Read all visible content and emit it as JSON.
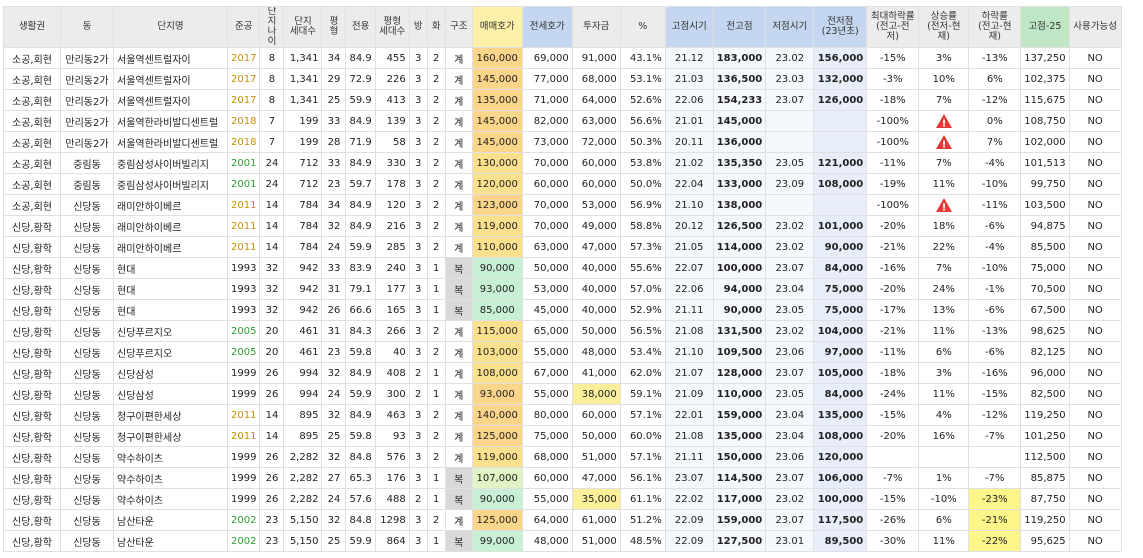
{
  "colors": {
    "header_bg": "#ececec",
    "blue_header": "#c5d7f0",
    "yellow_header": "#fdf0a8",
    "green_header": "#bfe7c6",
    "year_new": "#c69000",
    "year_recent": "#2f9e35",
    "warning": "#e53935"
  },
  "headers": [
    "생활권",
    "동",
    "단지명",
    "준공",
    "단지\n나이",
    "단지\n세대수",
    "평형",
    "전용",
    "평형\n세대수",
    "방",
    "화",
    "구조",
    "매매호가",
    "전세호가",
    "투자금",
    "%",
    "고점시기",
    "전고점",
    "저점시기",
    "전저점\n(23년초)",
    "최대하락률\n(전고-전저)",
    "상승률\n(전저-현재)",
    "하락률\n(전고-현재)",
    "고점-25",
    "사용가능성"
  ],
  "rows": [
    {
      "c": [
        "소공,회현",
        "만리동2가",
        "서울역센트럴자이",
        "2017",
        "8",
        "1,341",
        "34",
        "84.9",
        "455",
        "3",
        "2",
        "계",
        "160,000",
        "69,000",
        "91,000",
        "43.1%",
        "21.12",
        "183,000",
        "23.02",
        "156,000",
        "-15%",
        "3%",
        "-13%",
        "137,250",
        "NO"
      ],
      "yc": "y",
      "sc": "o",
      "pc": "y"
    },
    {
      "c": [
        "소공,회현",
        "만리동2가",
        "서울역센트럴자이",
        "2017",
        "8",
        "1,341",
        "29",
        "72.9",
        "226",
        "3",
        "2",
        "계",
        "145,000",
        "77,000",
        "68,000",
        "53.1%",
        "21.03",
        "136,500",
        "23.03",
        "132,000",
        "-3%",
        "10%",
        "6%",
        "102,375",
        "NO"
      ],
      "yc": "y",
      "sc": "o",
      "pc": "y"
    },
    {
      "c": [
        "소공,회현",
        "만리동2가",
        "서울역센트럴자이",
        "2017",
        "8",
        "1,341",
        "25",
        "59.9",
        "413",
        "3",
        "2",
        "계",
        "135,000",
        "71,000",
        "64,000",
        "52.6%",
        "22.06",
        "154,233",
        "23.07",
        "126,000",
        "-18%",
        "7%",
        "-12%",
        "115,675",
        "NO"
      ],
      "yc": "y",
      "sc": "o",
      "pc": "y"
    },
    {
      "c": [
        "소공,회현",
        "만리동2가",
        "서울역한라비발디센트럴",
        "2018",
        "7",
        "199",
        "33",
        "84.9",
        "139",
        "3",
        "2",
        "계",
        "145,000",
        "82,000",
        "63,000",
        "56.6%",
        "21.01",
        "145,000",
        "",
        "",
        "-100%",
        "!",
        "0%",
        "108,750",
        "NO"
      ],
      "yc": "y",
      "sc": "o",
      "pc": "y"
    },
    {
      "c": [
        "소공,회현",
        "만리동2가",
        "서울역한라비발디센트럴",
        "2018",
        "7",
        "199",
        "28",
        "71.9",
        "58",
        "3",
        "2",
        "계",
        "145,000",
        "73,000",
        "72,000",
        "50.3%",
        "20.11",
        "136,000",
        "",
        "",
        "-100%",
        "!",
        "7%",
        "102,000",
        "NO"
      ],
      "yc": "y",
      "sc": "o",
      "pc": "y"
    },
    {
      "c": [
        "소공,회현",
        "중림동",
        "중림삼성사이버빌리지",
        "2001",
        "24",
        "712",
        "33",
        "84.9",
        "330",
        "3",
        "2",
        "계",
        "130,000",
        "70,000",
        "60,000",
        "53.8%",
        "21.02",
        "135,350",
        "23.05",
        "121,000",
        "-11%",
        "7%",
        "-4%",
        "101,513",
        "NO"
      ],
      "yc": "g",
      "sc": "o",
      "pc": "lg"
    },
    {
      "c": [
        "소공,회현",
        "중림동",
        "중림삼성사이버빌리지",
        "2001",
        "24",
        "712",
        "23",
        "59.7",
        "178",
        "3",
        "2",
        "계",
        "120,000",
        "60,000",
        "60,000",
        "50.0%",
        "22.04",
        "133,000",
        "23.09",
        "108,000",
        "-19%",
        "11%",
        "-10%",
        "99,750",
        "NO"
      ],
      "yc": "g",
      "sc": "o",
      "pc": "lg"
    },
    {
      "c": [
        "소공,회현",
        "신당동",
        "래미안하이베르",
        "2011",
        "14",
        "784",
        "34",
        "84.9",
        "120",
        "3",
        "2",
        "계",
        "123,000",
        "70,000",
        "53,000",
        "56.9%",
        "21.10",
        "138,000",
        "",
        "",
        "-100%",
        "!",
        "-11%",
        "103,500",
        "NO"
      ],
      "yc": "y",
      "sc": "o",
      "pc": "y"
    },
    {
      "c": [
        "신당,황학",
        "신당동",
        "래미안하이베르",
        "2011",
        "14",
        "784",
        "32",
        "84.9",
        "216",
        "3",
        "2",
        "계",
        "119,000",
        "70,000",
        "49,000",
        "58.8%",
        "20.12",
        "126,500",
        "23.02",
        "101,000",
        "-20%",
        "18%",
        "-6%",
        "94,875",
        "NO"
      ],
      "yc": "y",
      "sc": "o",
      "pc": "lg"
    },
    {
      "c": [
        "신당,황학",
        "신당동",
        "래미안하이베르",
        "2011",
        "14",
        "784",
        "24",
        "59.9",
        "285",
        "3",
        "2",
        "계",
        "110,000",
        "63,000",
        "47,000",
        "57.3%",
        "21.05",
        "114,000",
        "23.02",
        "90,000",
        "-21%",
        "22%",
        "-4%",
        "85,500",
        "NO"
      ],
      "yc": "y",
      "sc": "o",
      "pc": "lg"
    },
    {
      "c": [
        "신당,황학",
        "신당동",
        "현대",
        "1993",
        "32",
        "942",
        "33",
        "83.9",
        "240",
        "3",
        "1",
        "복",
        "90,000",
        "50,000",
        "40,000",
        "55.6%",
        "22.07",
        "100,000",
        "23.07",
        "84,000",
        "-16%",
        "7%",
        "-10%",
        "75,000",
        "NO"
      ],
      "yc": "b",
      "sc": "g",
      "pc": "g"
    },
    {
      "c": [
        "신당,황학",
        "신당동",
        "현대",
        "1993",
        "32",
        "942",
        "31",
        "79.1",
        "177",
        "3",
        "1",
        "복",
        "93,000",
        "53,000",
        "40,000",
        "57.0%",
        "22.06",
        "94,000",
        "23.04",
        "75,000",
        "-20%",
        "24%",
        "-1%",
        "70,500",
        "NO"
      ],
      "yc": "b",
      "sc": "g",
      "pc": "g"
    },
    {
      "c": [
        "신당,황학",
        "신당동",
        "현대",
        "1993",
        "32",
        "942",
        "26",
        "66.6",
        "165",
        "3",
        "1",
        "복",
        "85,000",
        "45,000",
        "40,000",
        "52.9%",
        "21.11",
        "90,000",
        "23.05",
        "75,000",
        "-17%",
        "13%",
        "-6%",
        "67,500",
        "NO"
      ],
      "yc": "b",
      "sc": "g",
      "pc": "g"
    },
    {
      "c": [
        "신당,황학",
        "신당동",
        "신당푸르지오",
        "2005",
        "20",
        "461",
        "31",
        "84.3",
        "266",
        "3",
        "2",
        "계",
        "115,000",
        "65,000",
        "50,000",
        "56.5%",
        "21.08",
        "131,500",
        "23.02",
        "104,000",
        "-21%",
        "11%",
        "-13%",
        "98,625",
        "NO"
      ],
      "yc": "g",
      "sc": "o",
      "pc": "lg"
    },
    {
      "c": [
        "신당,황학",
        "신당동",
        "신당푸르지오",
        "2005",
        "20",
        "461",
        "23",
        "59.8",
        "40",
        "3",
        "2",
        "계",
        "103,000",
        "55,000",
        "48,000",
        "53.4%",
        "21.10",
        "109,500",
        "23.06",
        "97,000",
        "-11%",
        "6%",
        "-6%",
        "82,125",
        "NO"
      ],
      "yc": "g",
      "sc": "o",
      "pc": "lg"
    },
    {
      "c": [
        "신당,황학",
        "신당동",
        "신당삼성",
        "1999",
        "26",
        "994",
        "32",
        "84.9",
        "408",
        "2",
        "1",
        "계",
        "108,000",
        "67,000",
        "41,000",
        "62.0%",
        "21.07",
        "128,000",
        "23.07",
        "105,000",
        "-18%",
        "3%",
        "-16%",
        "96,000",
        "NO"
      ],
      "yc": "b",
      "sc": "o",
      "pc": "lg"
    },
    {
      "c": [
        "신당,황학",
        "신당동",
        "신당삼성",
        "1999",
        "26",
        "994",
        "24",
        "59.9",
        "300",
        "2",
        "1",
        "계",
        "93,000",
        "55,000",
        "38,000",
        "59.1%",
        "21.09",
        "110,000",
        "23.05",
        "84,000",
        "-24%",
        "11%",
        "-15%",
        "82,500",
        "NO"
      ],
      "yc": "b",
      "sc": "o",
      "pc": "g",
      "ic": "y"
    },
    {
      "c": [
        "신당,황학",
        "신당동",
        "청구이편한세상",
        "2011",
        "14",
        "895",
        "32",
        "84.9",
        "463",
        "3",
        "2",
        "계",
        "140,000",
        "80,000",
        "60,000",
        "57.1%",
        "22.01",
        "159,000",
        "23.04",
        "135,000",
        "-15%",
        "4%",
        "-12%",
        "119,250",
        "NO"
      ],
      "yc": "y",
      "sc": "o",
      "pc": "y"
    },
    {
      "c": [
        "신당,황학",
        "신당동",
        "청구이편한세상",
        "2011",
        "14",
        "895",
        "25",
        "59.8",
        "93",
        "3",
        "2",
        "계",
        "125,000",
        "75,000",
        "50,000",
        "60.0%",
        "21.08",
        "135,000",
        "23.04",
        "108,000",
        "-20%",
        "16%",
        "-7%",
        "101,250",
        "NO"
      ],
      "yc": "y",
      "sc": "o",
      "pc": "y"
    },
    {
      "c": [
        "신당,황학",
        "신당동",
        "약수하이츠",
        "1999",
        "26",
        "2,282",
        "32",
        "84.8",
        "576",
        "3",
        "2",
        "계",
        "119,000",
        "68,000",
        "51,000",
        "57.1%",
        "21.11",
        "150,000",
        "23.06",
        "120,000",
        "",
        "",
        "",
        "112,500",
        "NO"
      ],
      "yc": "b",
      "sc": "o",
      "pc": "lg"
    },
    {
      "c": [
        "신당,황학",
        "신당동",
        "약수하이츠",
        "1999",
        "26",
        "2,282",
        "27",
        "65.3",
        "176",
        "3",
        "1",
        "복",
        "107,000",
        "60,000",
        "47,000",
        "56.1%",
        "23.07",
        "114,500",
        "23.07",
        "106,000",
        "-7%",
        "1%",
        "-7%",
        "85,875",
        "NO"
      ],
      "yc": "b",
      "sc": "g",
      "pc": "lg"
    },
    {
      "c": [
        "신당,황학",
        "신당동",
        "약수하이츠",
        "1999",
        "26",
        "2,282",
        "24",
        "57.6",
        "488",
        "2",
        "1",
        "복",
        "90,000",
        "55,000",
        "35,000",
        "61.1%",
        "22.02",
        "117,000",
        "23.02",
        "100,000",
        "-15%",
        "-10%",
        "-23%",
        "87,750",
        "NO"
      ],
      "yc": "b",
      "sc": "g",
      "pc": "g",
      "ic": "y",
      "dc": "y"
    },
    {
      "c": [
        "신당,황학",
        "신당동",
        "남산타운",
        "2002",
        "23",
        "5,150",
        "32",
        "84.8",
        "1298",
        "3",
        "2",
        "계",
        "125,000",
        "64,000",
        "61,000",
        "51.2%",
        "22.09",
        "159,000",
        "23.07",
        "117,500",
        "-26%",
        "6%",
        "-21%",
        "119,250",
        "NO"
      ],
      "yc": "g",
      "sc": "o",
      "pc": "y",
      "dc": "y"
    },
    {
      "c": [
        "신당,황학",
        "신당동",
        "남산타운",
        "2002",
        "23",
        "5,150",
        "25",
        "59.9",
        "864",
        "3",
        "1",
        "복",
        "99,000",
        "48,000",
        "51,000",
        "48.5%",
        "22.09",
        "127,500",
        "23.01",
        "89,500",
        "-30%",
        "11%",
        "-22%",
        "95,625",
        "NO"
      ],
      "yc": "g",
      "sc": "g",
      "pc": "g",
      "dc": "y"
    }
  ]
}
